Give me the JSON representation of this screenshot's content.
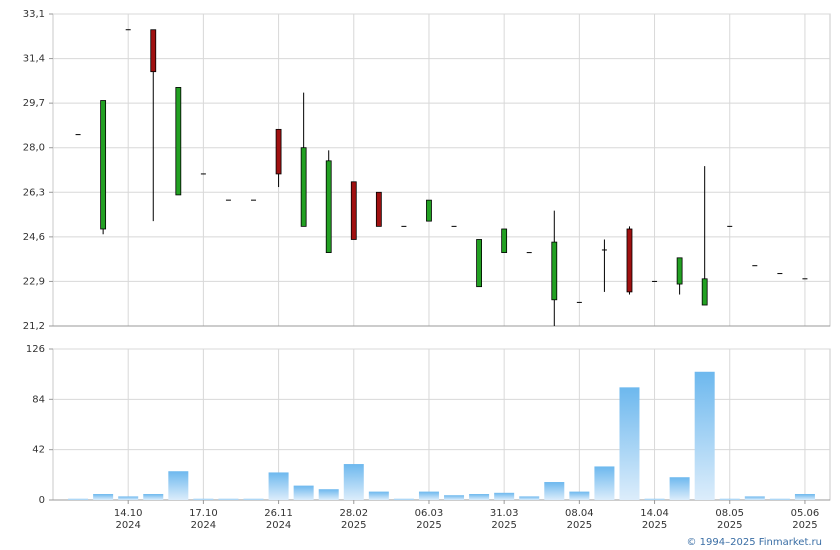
{
  "chart_data": [
    {
      "type": "candlestick",
      "up_color": "#22a022",
      "down_color": "#a01010",
      "outline_color": "#000000",
      "open": [
        28.5,
        24.9,
        32.5,
        32.5,
        26.2,
        27.0,
        26.0,
        26.0,
        28.7,
        25.0,
        24.0,
        26.7,
        26.3,
        25.0,
        25.2,
        25.0,
        22.7,
        24.0,
        24.0,
        22.2,
        22.1,
        24.1,
        24.9,
        22.9,
        22.8,
        22.0,
        25.0,
        23.5,
        23.2,
        23.0
      ],
      "high": [
        28.5,
        29.8,
        32.5,
        32.5,
        30.3,
        27.0,
        26.0,
        26.0,
        28.7,
        30.1,
        27.9,
        26.7,
        26.3,
        25.0,
        26.0,
        25.0,
        24.5,
        24.9,
        24.0,
        25.6,
        22.1,
        24.5,
        25.0,
        22.9,
        23.8,
        27.3,
        25.0,
        23.5,
        23.2,
        23.0
      ],
      "low": [
        28.5,
        24.7,
        32.5,
        25.2,
        26.2,
        27.0,
        26.0,
        26.0,
        26.5,
        25.0,
        24.0,
        24.5,
        25.0,
        25.0,
        25.2,
        25.0,
        22.7,
        24.0,
        24.0,
        21.2,
        22.1,
        22.5,
        22.4,
        22.9,
        22.4,
        22.0,
        25.0,
        23.5,
        23.2,
        23.0
      ],
      "close": [
        28.5,
        29.8,
        32.5,
        30.9,
        30.3,
        27.0,
        26.0,
        26.0,
        27.0,
        28.0,
        27.5,
        24.5,
        25.0,
        25.0,
        26.0,
        25.0,
        24.5,
        24.9,
        24.0,
        24.4,
        22.1,
        24.1,
        22.5,
        22.9,
        23.8,
        23.0,
        25.0,
        23.5,
        23.2,
        23.0
      ],
      "ylim": [
        21.2,
        33.1
      ],
      "yticks": [
        {
          "value": 21.2,
          "label": "21,2"
        },
        {
          "value": 22.9,
          "label": "22,9"
        },
        {
          "value": 24.6,
          "label": "24,6"
        },
        {
          "value": 26.3,
          "label": "26,3"
        },
        {
          "value": 28.0,
          "label": "28,0"
        },
        {
          "value": 29.7,
          "label": "29,7"
        },
        {
          "value": 31.4,
          "label": "31,4"
        },
        {
          "value": 33.1,
          "label": "33,1"
        }
      ],
      "grid": true
    },
    {
      "type": "bar",
      "categories": [
        null,
        null,
        "14.10 2024",
        null,
        null,
        "17.10 2024",
        null,
        null,
        "26.11 2024",
        null,
        null,
        "28.02 2025",
        null,
        null,
        "06.03 2025",
        null,
        null,
        "31.03 2025",
        null,
        null,
        "08.04 2025",
        null,
        null,
        "14.04 2025",
        null,
        null,
        "08.05 2025",
        null,
        null,
        "05.06 2025"
      ],
      "values": [
        1,
        5,
        3,
        5,
        24,
        1,
        1,
        1,
        23,
        12,
        9,
        30,
        7,
        1,
        7,
        4,
        5,
        6,
        3,
        15,
        7,
        28,
        94,
        1,
        19,
        107,
        1,
        3,
        1,
        5
      ],
      "color": "#6db8ee",
      "color_light": "#dcedfb",
      "ylim": [
        0,
        126
      ],
      "yticks": [
        0,
        42,
        84,
        126
      ],
      "grid": true
    }
  ],
  "copyright": "© 1994–2025 Finmarket.ru"
}
